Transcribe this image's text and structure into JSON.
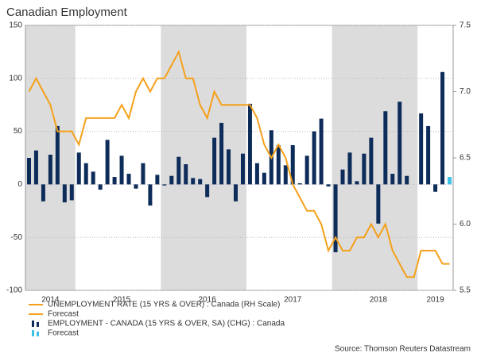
{
  "chart_data": {
    "type": "bar-line",
    "title": "Canadian Employment",
    "source": "Source: Thomson Reuters Datastream",
    "categories": [
      null,
      null,
      null,
      "2014",
      null,
      null,
      null,
      null,
      null,
      null,
      null,
      null,
      null,
      "2015",
      null,
      null,
      null,
      null,
      null,
      null,
      null,
      null,
      null,
      null,
      null,
      "2016",
      null,
      null,
      null,
      null,
      null,
      null,
      null,
      null,
      null,
      null,
      null,
      "2017",
      null,
      null,
      null,
      null,
      null,
      null,
      null,
      null,
      null,
      null,
      null,
      "2018",
      null,
      null,
      null,
      null,
      null,
      null,
      null,
      "2019",
      null,
      null
    ],
    "ylim": [
      -100,
      150
    ],
    "yticks": [
      -100,
      -50,
      0,
      50,
      100,
      150
    ],
    "y2lim": [
      5.5,
      7.5
    ],
    "y2ticks": [
      5.5,
      {
        "value": 6,
        "label": "6.0"
      },
      6.5,
      {
        "value": 7,
        "label": "7.0"
      },
      7.5
    ],
    "grid": true,
    "series": [
      {
        "name": "UNEMPLOYMENT RATE (15 YRS & OVER) : Canada (RH Scale)",
        "kind": "line",
        "axis": "y2",
        "color": "#f5a01a",
        "values": [
          7.0,
          7.1,
          7.0,
          6.9,
          6.7,
          6.7,
          6.7,
          6.6,
          6.8,
          6.8,
          6.8,
          6.8,
          6.8,
          6.9,
          6.8,
          7.0,
          7.1,
          7.0,
          7.1,
          7.1,
          7.2,
          7.3,
          7.1,
          7.1,
          6.9,
          6.8,
          7.0,
          6.9,
          6.9,
          6.9,
          6.9,
          6.9,
          6.8,
          6.6,
          6.5,
          6.6,
          6.5,
          6.3,
          6.2,
          6.1,
          6.1,
          6.0,
          5.8,
          5.9,
          5.8,
          5.8,
          5.9,
          5.9,
          6.0,
          5.9,
          6.0,
          5.8,
          5.7,
          5.6,
          5.6,
          5.8,
          5.8,
          5.8,
          5.7,
          null
        ]
      },
      {
        "name": "Forecast",
        "kind": "line",
        "axis": "y2",
        "color": "#f5a01a",
        "values": [
          null,
          null,
          null,
          null,
          null,
          null,
          null,
          null,
          null,
          null,
          null,
          null,
          null,
          null,
          null,
          null,
          null,
          null,
          null,
          null,
          null,
          null,
          null,
          null,
          null,
          null,
          null,
          null,
          null,
          null,
          null,
          null,
          null,
          null,
          null,
          null,
          null,
          null,
          null,
          null,
          null,
          null,
          null,
          null,
          null,
          null,
          null,
          null,
          null,
          null,
          null,
          null,
          null,
          null,
          null,
          null,
          null,
          null,
          5.7,
          5.7
        ]
      },
      {
        "name": "EMPLOYMENT - CANADA (15 YRS & OVER, SA) (CHG) : Canada",
        "kind": "bar",
        "color": "#0d2c5a",
        "values": [
          25,
          32,
          -16,
          28,
          55,
          -17,
          -15,
          30,
          20,
          12,
          -5,
          42,
          7,
          27,
          10,
          -4,
          20,
          -20,
          9,
          -1,
          8,
          26,
          19,
          6,
          5,
          -12,
          44,
          58,
          33,
          -16,
          29,
          76,
          20,
          11,
          51,
          37,
          18,
          37,
          1,
          27,
          50,
          62,
          -2,
          -64,
          14,
          30,
          3,
          29,
          44,
          -37,
          69,
          10,
          78,
          8,
          0,
          67,
          55,
          -7,
          106,
          null
        ]
      },
      {
        "name": "Forecast",
        "kind": "bar",
        "color": "#3ec1e6",
        "values": [
          null,
          null,
          null,
          null,
          null,
          null,
          null,
          null,
          null,
          null,
          null,
          null,
          null,
          null,
          null,
          null,
          null,
          null,
          null,
          null,
          null,
          null,
          null,
          null,
          null,
          null,
          null,
          null,
          null,
          null,
          null,
          null,
          null,
          null,
          null,
          null,
          null,
          null,
          null,
          null,
          null,
          null,
          null,
          null,
          null,
          null,
          null,
          null,
          null,
          null,
          null,
          null,
          null,
          null,
          null,
          null,
          null,
          null,
          null,
          7
        ]
      }
    ]
  }
}
